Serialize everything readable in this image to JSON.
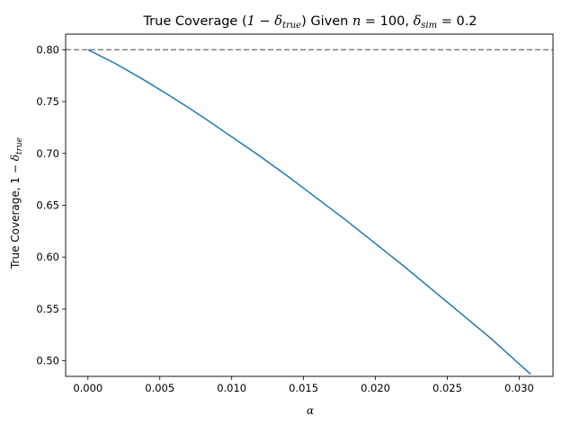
{
  "chart_data": {
    "type": "line",
    "title": {
      "prefix": "True Coverage (",
      "one_minus": "1 − ",
      "delta_true": "δ",
      "true_sub": "true",
      "given": ") Given ",
      "n": "n",
      "n_value": " = 100, ",
      "delta_sim": "δ",
      "sim_sub": "sim",
      "sim_value": " = 0.2"
    },
    "xlabel": "α",
    "ylabel": {
      "text": "True Coverage, 1 − ",
      "delta": "δ",
      "sub": "true"
    },
    "xlim": [
      -0.00155,
      0.03235
    ],
    "ylim": [
      0.485,
      0.815
    ],
    "xticks": [
      {
        "value": 0.0,
        "label": "0.000"
      },
      {
        "value": 0.005,
        "label": "0.005"
      },
      {
        "value": 0.01,
        "label": "0.010"
      },
      {
        "value": 0.015,
        "label": "0.015"
      },
      {
        "value": 0.02,
        "label": "0.020"
      },
      {
        "value": 0.025,
        "label": "0.025"
      },
      {
        "value": 0.03,
        "label": "0.030"
      }
    ],
    "yticks": [
      {
        "value": 0.5,
        "label": "0.50"
      },
      {
        "value": 0.55,
        "label": "0.55"
      },
      {
        "value": 0.6,
        "label": "0.60"
      },
      {
        "value": 0.65,
        "label": "0.65"
      },
      {
        "value": 0.7,
        "label": "0.70"
      },
      {
        "value": 0.75,
        "label": "0.75"
      },
      {
        "value": 0.8,
        "label": "0.80"
      }
    ],
    "grid": false,
    "reference_line": {
      "y": 0.8,
      "style": "dashed",
      "color": "#808080"
    },
    "series": [
      {
        "color": "#1f77b4",
        "x": [
          0.0,
          0.002,
          0.004,
          0.006,
          0.008,
          0.01,
          0.012,
          0.014,
          0.016,
          0.018,
          0.02,
          0.022,
          0.024,
          0.026,
          0.028,
          0.03,
          0.0308
        ],
        "y": [
          0.8,
          0.786,
          0.77,
          0.753,
          0.735,
          0.716,
          0.697,
          0.677,
          0.656,
          0.635,
          0.613,
          0.591,
          0.568,
          0.545,
          0.522,
          0.497,
          0.487
        ]
      }
    ]
  }
}
